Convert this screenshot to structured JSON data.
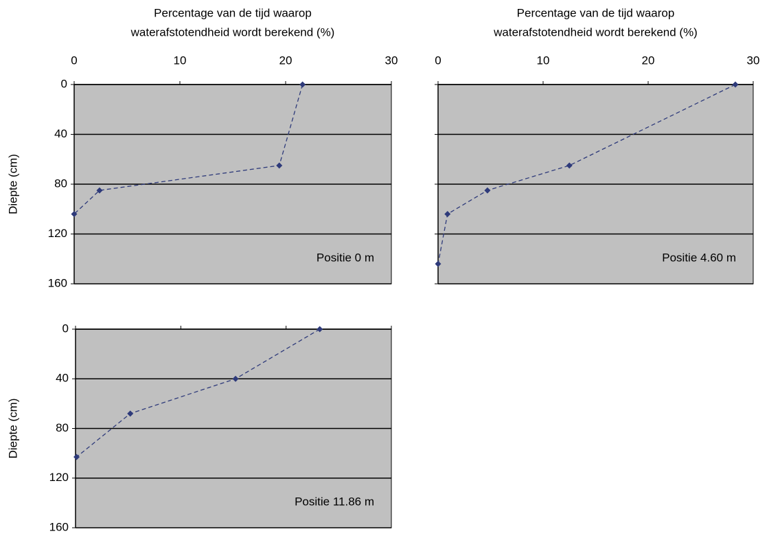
{
  "chart_data": [
    {
      "type": "line",
      "xlabel": [
        "Percentage van de tijd waarop",
        "waterafstotendheid wordt berekend (%)"
      ],
      "ylabel": "Diepte (cm)",
      "annotation": "Positie 0 m",
      "x": [
        21.6,
        19.4,
        2.4,
        0
      ],
      "series": [
        {
          "color": "#2e3a7a",
          "values": [
            0,
            65,
            85,
            104
          ]
        }
      ],
      "xlim": [
        0,
        30
      ],
      "ylim": [
        0,
        160
      ],
      "y_inverted": true,
      "xticks": [
        0,
        10,
        20,
        30
      ],
      "yticks": [
        0,
        40,
        80,
        120,
        160
      ],
      "grid": true,
      "xtick_labels": true,
      "ytick_labels": true,
      "background": "#c0c0c0"
    },
    {
      "type": "line",
      "xlabel": [
        "Percentage van de tijd waarop",
        "waterafstotendheid wordt berekend (%)"
      ],
      "annotation": "Positie 4.60 m",
      "x": [
        28.3,
        12.5,
        4.7,
        0.9,
        0
      ],
      "series": [
        {
          "color": "#2e3a7a",
          "values": [
            0,
            65,
            85,
            104,
            144
          ]
        }
      ],
      "xlim": [
        0,
        30
      ],
      "ylim": [
        0,
        160
      ],
      "y_inverted": true,
      "xticks": [
        0,
        10,
        20,
        30
      ],
      "yticks": [
        0,
        40,
        80,
        120,
        160
      ],
      "grid": true,
      "xtick_labels": true,
      "ytick_labels": false,
      "background": "#c0c0c0"
    },
    {
      "type": "line",
      "ylabel": "Diepte (cm)",
      "annotation": "Positie 11.86 m",
      "x": [
        23.2,
        15.2,
        5.2,
        0.1
      ],
      "series": [
        {
          "color": "#2e3a7a",
          "values": [
            0,
            40,
            68,
            103
          ]
        }
      ],
      "xlim": [
        0,
        30
      ],
      "ylim": [
        0,
        160
      ],
      "y_inverted": true,
      "xticks": [
        0,
        10,
        20,
        30
      ],
      "yticks": [
        0,
        40,
        80,
        120,
        160
      ],
      "grid": true,
      "xtick_labels": false,
      "ytick_labels": true,
      "background": "#c0c0c0"
    }
  ]
}
